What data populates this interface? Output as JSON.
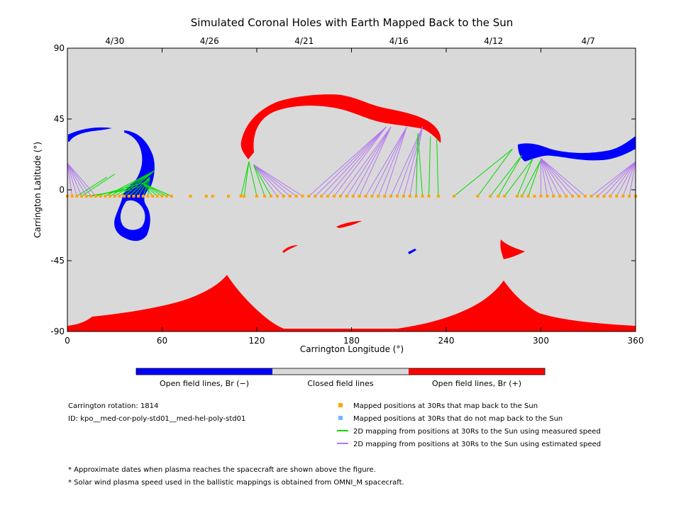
{
  "chart_data": {
    "type": "map",
    "title": "Simulated Coronal Holes with Earth Mapped Back to the Sun",
    "xlabel": "Carrington Longitude (°)",
    "ylabel": "Carrington Latitude (°)",
    "xlim": [
      0,
      360
    ],
    "ylim": [
      -90,
      90
    ],
    "x_ticks": [
      "0",
      "60",
      "120",
      "180",
      "240",
      "300",
      "360"
    ],
    "y_ticks": [
      "90",
      "45",
      "0",
      "-45",
      "-90"
    ],
    "top_dates": [
      {
        "label": "4/30",
        "lon": 30
      },
      {
        "label": "4/26",
        "lon": 90
      },
      {
        "label": "4/21",
        "lon": 150
      },
      {
        "label": "4/16",
        "lon": 210
      },
      {
        "label": "4/12",
        "lon": 270
      },
      {
        "label": "4/7",
        "lon": 330
      }
    ],
    "colors": {
      "open_negative": "#0000ff",
      "closed": "#d9d9d9",
      "open_positive": "#ff0000",
      "mapped_point": "#ffa500",
      "unmapped_point": "#6db6ff",
      "measured_line": "#00dd00",
      "estimated_line": "#b478f0"
    },
    "colorbar_labels": [
      "Open field lines, Br (−)",
      "Closed field lines",
      "Open field lines, Br (+)"
    ],
    "legend": [
      {
        "label": "Mapped positions at 30Rs that map back to the Sun",
        "kind": "square",
        "color": "#ffa500"
      },
      {
        "label": "Mapped positions at 30Rs that do not map back to the Sun",
        "kind": "square",
        "color": "#6db6ff"
      },
      {
        "label": "2D mapping from positions at 30Rs to the Sun using measured speed",
        "kind": "line",
        "color": "#00dd00"
      },
      {
        "label": "2D mapping from positions at 30Rs to the Sun using estimated speed",
        "kind": "line",
        "color": "#b478f0"
      }
    ],
    "info": {
      "rotation": "Carrington rotation: 1814",
      "id": "ID: kpo__med-cor-poly-std01__med-hel-poly-std01"
    },
    "footnotes": [
      "* Approximate dates when plasma reaches the spacecraft are shown above the figure.",
      "* Solar wind plasma speed used in the ballistic mappings is obtained from OMNI_M spacecraft."
    ],
    "coronal_holes": [
      {
        "sign": "-",
        "lon": [
          0,
          55
        ],
        "lat": [
          -32,
          40
        ],
        "note": "loop-shaped hole near 0-55°"
      },
      {
        "sign": "+",
        "lon": [
          110,
          237
        ],
        "lat": [
          15,
          60
        ],
        "note": "northern arc"
      },
      {
        "sign": "-",
        "lon": [
          285,
          360
        ],
        "lat": [
          20,
          33
        ],
        "note": "northern band"
      },
      {
        "sign": "+",
        "lon": [
          0,
          360
        ],
        "lat": [
          -90,
          -60
        ],
        "note": "south polar hole"
      }
    ],
    "mapping_groups": [
      {
        "kind": "measured",
        "sun": [
          [
            25,
            8
          ],
          [
            30,
            10
          ],
          [
            40,
            0
          ],
          [
            45,
            2
          ],
          [
            50,
            5
          ],
          [
            55,
            12
          ]
        ],
        "points": [
          5,
          20
        ]
      },
      {
        "kind": "measured",
        "sun": [
          [
            55,
            12
          ],
          [
            52,
            8
          ],
          [
            48,
            4
          ]
        ],
        "points": [
          22,
          70
        ]
      },
      {
        "kind": "estimated",
        "sun": [
          [
            0,
            17
          ]
        ],
        "points": [
          0,
          20
        ]
      },
      {
        "kind": "measured",
        "sun": [
          [
            115,
            18
          ],
          [
            118,
            16
          ]
        ],
        "points": [
          104,
          130
        ]
      },
      {
        "kind": "estimated",
        "sun": [
          [
            118,
            16
          ]
        ],
        "points": [
          130,
          150
        ]
      },
      {
        "kind": "estimated",
        "sun": [
          [
            202,
            40
          ],
          [
            205,
            40
          ],
          [
            215,
            40
          ],
          [
            225,
            40
          ]
        ],
        "points": [
          152,
          220
        ]
      },
      {
        "kind": "measured",
        "sun": [
          [
            222,
            36
          ],
          [
            230,
            34
          ],
          [
            234,
            33
          ]
        ],
        "points": [
          218,
          240
        ]
      },
      {
        "kind": "measured",
        "sun": [
          [
            282,
            26
          ],
          [
            288,
            22
          ],
          [
            295,
            20
          ],
          [
            300,
            19
          ]
        ],
        "points": [
          245,
          295
        ]
      },
      {
        "kind": "estimated",
        "sun": [
          [
            300,
            20
          ],
          [
            360,
            18
          ]
        ],
        "points": [
          298,
          360
        ]
      }
    ],
    "mapped_points_lat": -4,
    "mapped_points_lon": [
      0,
      3,
      6,
      9,
      12,
      15,
      18,
      21,
      24,
      27,
      30,
      33,
      36,
      39,
      42,
      45,
      48,
      51,
      54,
      57,
      60,
      63,
      66,
      78,
      88,
      92,
      102,
      110,
      112,
      120,
      125,
      129,
      133,
      137,
      141,
      145,
      149,
      153,
      157,
      161,
      165,
      169,
      173,
      177,
      181,
      185,
      189,
      193,
      197,
      201,
      205,
      209,
      213,
      217,
      221,
      225,
      229,
      235,
      245,
      260,
      268,
      273,
      277,
      285,
      288,
      292,
      296,
      300,
      304,
      308,
      312,
      316,
      320,
      324,
      328,
      332,
      336,
      340,
      344,
      348,
      352,
      356,
      360
    ]
  }
}
